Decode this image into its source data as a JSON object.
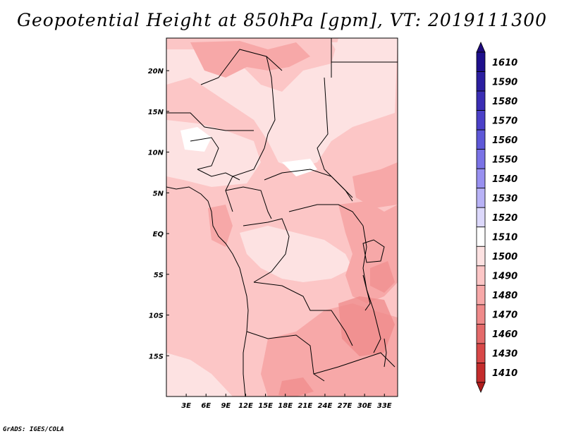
{
  "title": "Geopotential Height at 850hPa [gpm], VT: 2019111300",
  "credit": "GrADS: IGES/COLA",
  "map": {
    "lon_range": [
      0,
      35
    ],
    "lat_range": [
      -20,
      24
    ],
    "lon_ticks": [
      {
        "value": 3,
        "label": "3E"
      },
      {
        "value": 6,
        "label": "6E"
      },
      {
        "value": 9,
        "label": "9E"
      },
      {
        "value": 12,
        "label": "12E"
      },
      {
        "value": 15,
        "label": "15E"
      },
      {
        "value": 18,
        "label": "18E"
      },
      {
        "value": 21,
        "label": "21E"
      },
      {
        "value": 24,
        "label": "24E"
      },
      {
        "value": 27,
        "label": "27E"
      },
      {
        "value": 30,
        "label": "30E"
      },
      {
        "value": 33,
        "label": "33E"
      }
    ],
    "lat_ticks": [
      {
        "value": 20,
        "label": "20N"
      },
      {
        "value": 15,
        "label": "15N"
      },
      {
        "value": 10,
        "label": "10N"
      },
      {
        "value": 5,
        "label": "5N"
      },
      {
        "value": 0,
        "label": "EQ"
      },
      {
        "value": -5,
        "label": "5S"
      },
      {
        "value": -10,
        "label": "10S"
      },
      {
        "value": -15,
        "label": "15S"
      }
    ]
  },
  "colorbar": {
    "levels": [
      {
        "label": "1610",
        "color": "#1e0f8c"
      },
      {
        "label": "1590",
        "color": "#2b1ea0"
      },
      {
        "label": "1580",
        "color": "#3a2db4"
      },
      {
        "label": "1570",
        "color": "#4b40c8"
      },
      {
        "label": "1560",
        "color": "#5e58d8"
      },
      {
        "label": "1550",
        "color": "#7a72e6"
      },
      {
        "label": "1540",
        "color": "#9890f0"
      },
      {
        "label": "1530",
        "color": "#b8b2f6"
      },
      {
        "label": "1520",
        "color": "#dcd8fb"
      },
      {
        "label": "1510",
        "color": "#ffffff"
      },
      {
        "label": "1500",
        "color": "#fde2e2"
      },
      {
        "label": "1490",
        "color": "#fcc6c6"
      },
      {
        "label": "1480",
        "color": "#f7a8a8"
      },
      {
        "label": "1470",
        "color": "#ef8a8a"
      },
      {
        "label": "1460",
        "color": "#e46a6a"
      },
      {
        "label": "1430",
        "color": "#d84848"
      },
      {
        "label": "1410",
        "color": "#c42c2c"
      }
    ],
    "top_arrow_color": "#1e0a7c",
    "bottom_arrow_color": "#b01c1c"
  }
}
